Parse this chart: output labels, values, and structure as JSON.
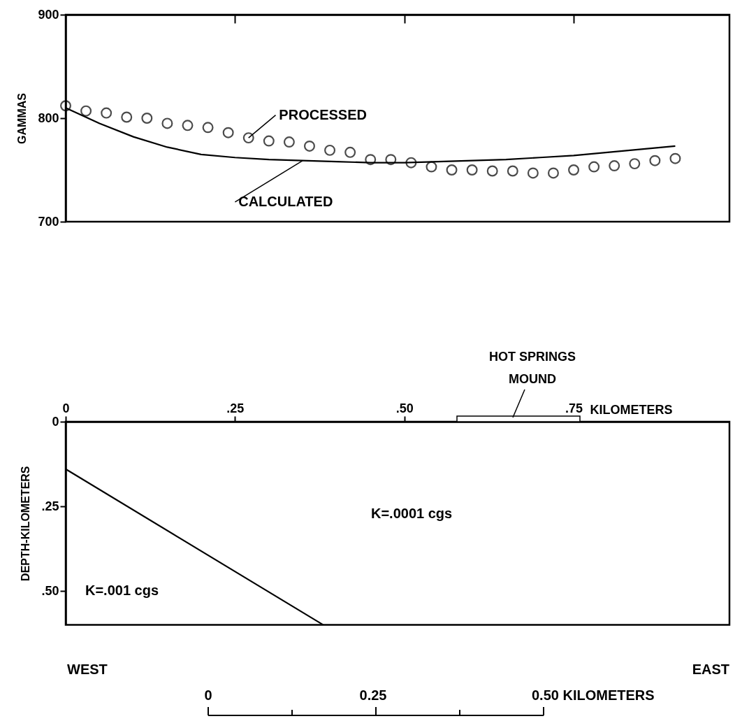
{
  "chart_data": [
    {
      "type": "scatter",
      "ylabel": "GAMMAS",
      "xlim": [
        0,
        0.98
      ],
      "xticks": [
        {
          "value": 0.25,
          "label": null
        },
        {
          "value": 0.5,
          "label": null
        },
        {
          "value": 0.75,
          "label": null
        }
      ],
      "ylim": [
        700,
        900
      ],
      "yticks": [
        700,
        800,
        900
      ],
      "tick_labels": "y",
      "series": [
        {
          "name": "PROCESSED",
          "marker": "circle",
          "color": "#000000",
          "x": [
            0,
            0.03,
            0.06,
            0.09,
            0.12,
            0.15,
            0.18,
            0.21,
            0.24,
            0.27,
            0.3,
            0.33,
            0.36,
            0.39,
            0.42,
            0.45,
            0.48,
            0.51,
            0.54,
            0.57,
            0.6,
            0.63,
            0.66,
            0.69,
            0.72,
            0.75,
            0.78,
            0.81,
            0.84,
            0.87,
            0.9
          ],
          "values": [
            812,
            807,
            805,
            801,
            800,
            795,
            793,
            791,
            786,
            781,
            778,
            777,
            773,
            769,
            767,
            760,
            760,
            757,
            753,
            750,
            750,
            749,
            749,
            747,
            747,
            750,
            753,
            754,
            756,
            759,
            761
          ]
        },
        {
          "name": "CALCULATED",
          "type": "line",
          "color": "#000000",
          "x": [
            0,
            0.05,
            0.1,
            0.15,
            0.2,
            0.25,
            0.3,
            0.35,
            0.4,
            0.45,
            0.5,
            0.55,
            0.6,
            0.65,
            0.7,
            0.75,
            0.8,
            0.85,
            0.9
          ],
          "values": [
            810,
            795,
            782,
            772,
            765,
            762,
            760,
            759,
            758,
            757,
            757,
            758,
            759,
            760,
            762,
            764,
            767,
            770,
            773
          ]
        }
      ]
    },
    {
      "type": "line",
      "xlabel": "KILOMETERS",
      "ylabel": "DEPTH-KILOMETERS",
      "xlim": [
        0,
        0.98
      ],
      "xticks": [
        0,
        {
          "value": 0.25,
          "label": ".25"
        },
        {
          "value": 0.5,
          "label": ".50"
        },
        {
          "value": 0.75,
          "label": ".75"
        }
      ],
      "ylim": [
        0.6,
        0
      ],
      "yticks": [
        0,
        {
          "value": 0.25,
          "label": ".25"
        },
        {
          "value": 0.5,
          "label": ".50"
        }
      ],
      "series": [
        {
          "color": "#000000",
          "x": [
            0,
            0.38
          ],
          "values": [
            0.14,
            0.6
          ]
        }
      ],
      "annotations": [
        "K=.001 cgs",
        "K=.0001 cgs",
        "WEST",
        "EAST",
        "0",
        "0.25",
        "0.50 KILOMETERS",
        "HOT SPRINGS MOUND"
      ]
    }
  ]
}
